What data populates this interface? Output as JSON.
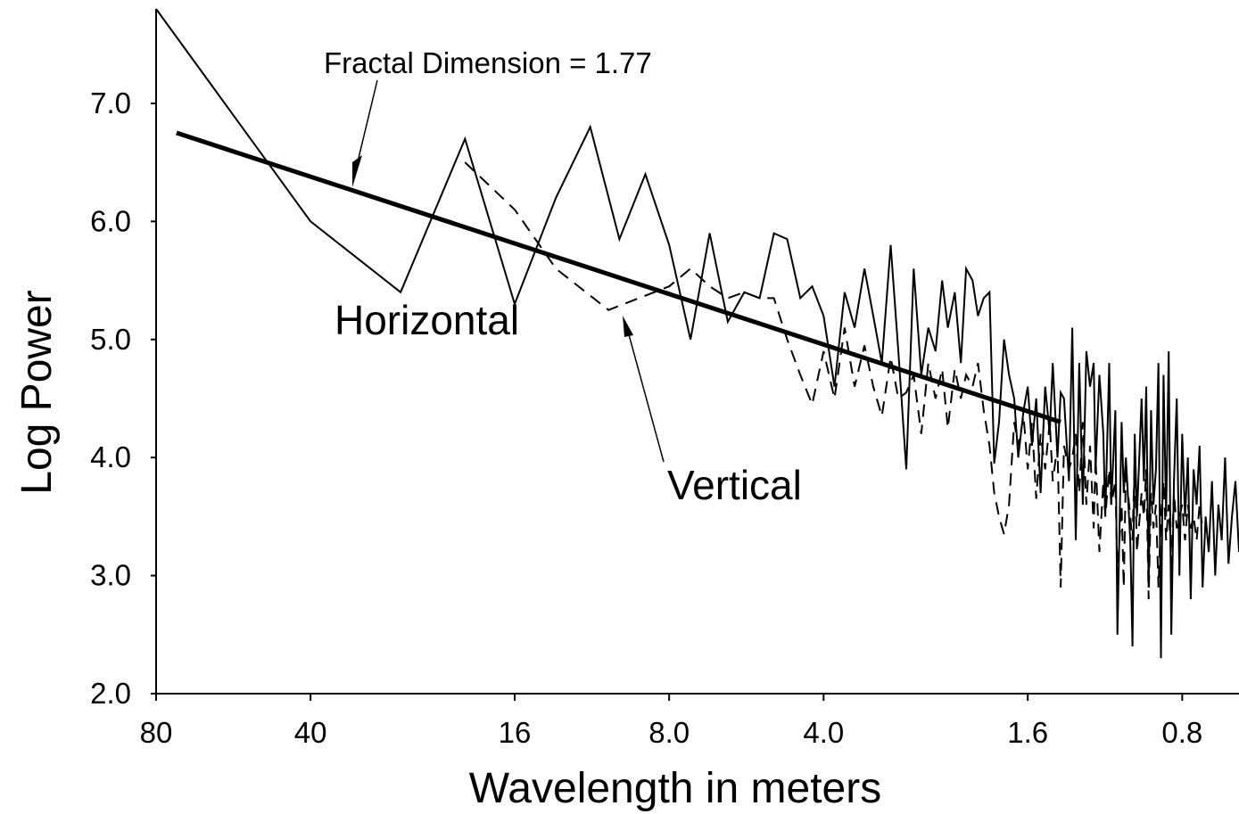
{
  "chart_data": {
    "type": "line",
    "xlabel": "Wavelength in meters",
    "ylabel": "Log Power",
    "x_scale": "log",
    "xlim": [
      80,
      0.62
    ],
    "ylim": [
      2.0,
      7.8
    ],
    "x_ticks": [
      80,
      40,
      16,
      8.0,
      4.0,
      1.6,
      0.8
    ],
    "x_tick_labels": [
      "80",
      "40",
      "16",
      "8.0",
      "4.0",
      "1.6",
      "0.8"
    ],
    "y_ticks": [
      2.0,
      3.0,
      4.0,
      5.0,
      6.0,
      7.0
    ],
    "y_tick_labels": [
      "2.0",
      "3.0",
      "4.0",
      "5.0",
      "6.0",
      "7.0"
    ],
    "grid": false,
    "annotations": {
      "fractal": "Fractal Dimension = 1.77",
      "horizontal": "Horizontal",
      "vertical": "Vertical"
    },
    "series": [
      {
        "style": "solid",
        "x": [
          80,
          40,
          26.7,
          20,
          16,
          13.3,
          11.4,
          10,
          8.9,
          8,
          7.27,
          6.67,
          6.15,
          5.71,
          5.33,
          5,
          4.71,
          4.44,
          4.21,
          4,
          3.81,
          3.64,
          3.48,
          3.33,
          3.2,
          3.08,
          2.96,
          2.86,
          2.76,
          2.67,
          2.58,
          2.5,
          2.42,
          2.35,
          2.29,
          2.22,
          2.16,
          2.11,
          2.05,
          2.0,
          1.95,
          1.9,
          1.86,
          1.82,
          1.78,
          1.74,
          1.7,
          1.67,
          1.63,
          1.6,
          1.57,
          1.54,
          1.51,
          1.48,
          1.45,
          1.43,
          1.4,
          1.38,
          1.36,
          1.33,
          1.31,
          1.29,
          1.27,
          1.25,
          1.23,
          1.21,
          1.19,
          1.18,
          1.16,
          1.14,
          1.13,
          1.11,
          1.1,
          1.08,
          1.07,
          1.05,
          1.04,
          1.03,
          1.01,
          1.0,
          0.99,
          0.98,
          0.96,
          0.95,
          0.94,
          0.93,
          0.92,
          0.91,
          0.9,
          0.89,
          0.88,
          0.87,
          0.86,
          0.85,
          0.84,
          0.83,
          0.82,
          0.81,
          0.8,
          0.79,
          0.78,
          0.77,
          0.76,
          0.75,
          0.74,
          0.73,
          0.72,
          0.71,
          0.7,
          0.69,
          0.68,
          0.67,
          0.66,
          0.65,
          0.64,
          0.63,
          0.62
        ],
        "y": [
          7.8,
          6.0,
          5.4,
          6.7,
          5.3,
          6.2,
          6.8,
          5.85,
          6.4,
          5.8,
          5.0,
          5.9,
          5.15,
          5.4,
          5.35,
          5.9,
          5.85,
          5.35,
          5.45,
          5.2,
          4.6,
          5.4,
          5.1,
          5.6,
          5.2,
          4.8,
          5.8,
          4.9,
          3.9,
          5.6,
          4.7,
          5.1,
          4.9,
          5.5,
          5.1,
          5.4,
          4.8,
          5.6,
          5.5,
          5.2,
          5.35,
          5.4,
          3.95,
          4.3,
          5.0,
          4.7,
          4.5,
          4.0,
          4.4,
          4.6,
          4.1,
          4.5,
          3.7,
          4.6,
          4.2,
          4.8,
          4.0,
          4.55,
          4.5,
          3.8,
          5.1,
          3.3,
          4.8,
          3.6,
          4.9,
          4.6,
          4.8,
          3.9,
          4.7,
          4.2,
          3.5,
          4.8,
          3.6,
          4.4,
          2.5,
          4.3,
          3.7,
          4.0,
          3.3,
          2.4,
          4.2,
          3.5,
          4.5,
          3.8,
          4.6,
          2.9,
          4.4,
          3.6,
          3.9,
          4.8,
          2.3,
          4.7,
          3.5,
          4.9,
          2.5,
          3.8,
          4.5,
          3.0,
          4.2,
          3.5,
          4.0,
          2.8,
          3.9,
          3.6,
          4.1,
          2.9,
          3.5,
          3.2,
          3.8,
          3.0,
          3.6,
          3.3,
          4.0,
          3.1,
          3.5,
          3.8,
          3.2
        ]
      },
      {
        "style": "dashed",
        "x": [
          20,
          16,
          13.3,
          10.5,
          8,
          7.27,
          6.67,
          6.15,
          5.71,
          5.33,
          5,
          4.71,
          4.44,
          4.21,
          4,
          3.81,
          3.64,
          3.48,
          3.33,
          3.2,
          3.08,
          2.96,
          2.86,
          2.76,
          2.67,
          2.58,
          2.5,
          2.42,
          2.35,
          2.29,
          2.22,
          2.16,
          2.11,
          2.05,
          2.0,
          1.95,
          1.9,
          1.86,
          1.82,
          1.78,
          1.74,
          1.7,
          1.67,
          1.63,
          1.6,
          1.57,
          1.54,
          1.51,
          1.48,
          1.45,
          1.43,
          1.4,
          1.38,
          1.36,
          1.33,
          1.31,
          1.29,
          1.27,
          1.25,
          1.23,
          1.21,
          1.19,
          1.18,
          1.16,
          1.14,
          1.13,
          1.11,
          1.1,
          1.08,
          1.07,
          1.05,
          1.04,
          1.03,
          1.01,
          1.0,
          0.99,
          0.98,
          0.96,
          0.95,
          0.94,
          0.93,
          0.92,
          0.91,
          0.9,
          0.89,
          0.88,
          0.87,
          0.86,
          0.85,
          0.84,
          0.83,
          0.82,
          0.81,
          0.8,
          0.79,
          0.78,
          0.77,
          0.76,
          0.75,
          0.74,
          0.73
        ],
        "y": [
          6.5,
          6.1,
          5.6,
          5.25,
          5.45,
          5.6,
          5.45,
          5.35,
          5.4,
          5.35,
          5.35,
          5.0,
          4.7,
          4.45,
          4.9,
          4.5,
          5.1,
          4.6,
          4.95,
          4.6,
          4.35,
          4.85,
          4.5,
          4.55,
          4.7,
          4.2,
          4.8,
          4.5,
          4.75,
          4.25,
          4.75,
          4.5,
          4.7,
          4.6,
          4.8,
          4.4,
          4.1,
          3.7,
          3.5,
          3.35,
          3.6,
          4.3,
          4.1,
          4.35,
          3.9,
          4.3,
          3.65,
          4.2,
          3.9,
          4.3,
          3.8,
          4.1,
          2.9,
          4.1,
          3.9,
          4.0,
          4.2,
          3.7,
          4.3,
          3.6,
          4.1,
          3.4,
          4.0,
          3.2,
          3.8,
          3.5,
          3.9,
          3.6,
          3.8,
          3.0,
          3.6,
          2.9,
          3.9,
          3.5,
          3.3,
          4.0,
          3.2,
          3.7,
          3.5,
          3.9,
          2.8,
          3.7,
          3.4,
          3.6,
          2.9,
          3.5,
          3.8,
          3.3,
          3.6,
          3.1,
          3.7,
          3.4,
          3.5,
          3.6,
          3.3,
          3.6,
          3.4,
          3.5,
          3.3,
          3.6,
          3.4
        ]
      },
      {
        "style": "fit",
        "x": [
          73,
          1.38
        ],
        "y": [
          6.75,
          4.3
        ]
      }
    ]
  }
}
